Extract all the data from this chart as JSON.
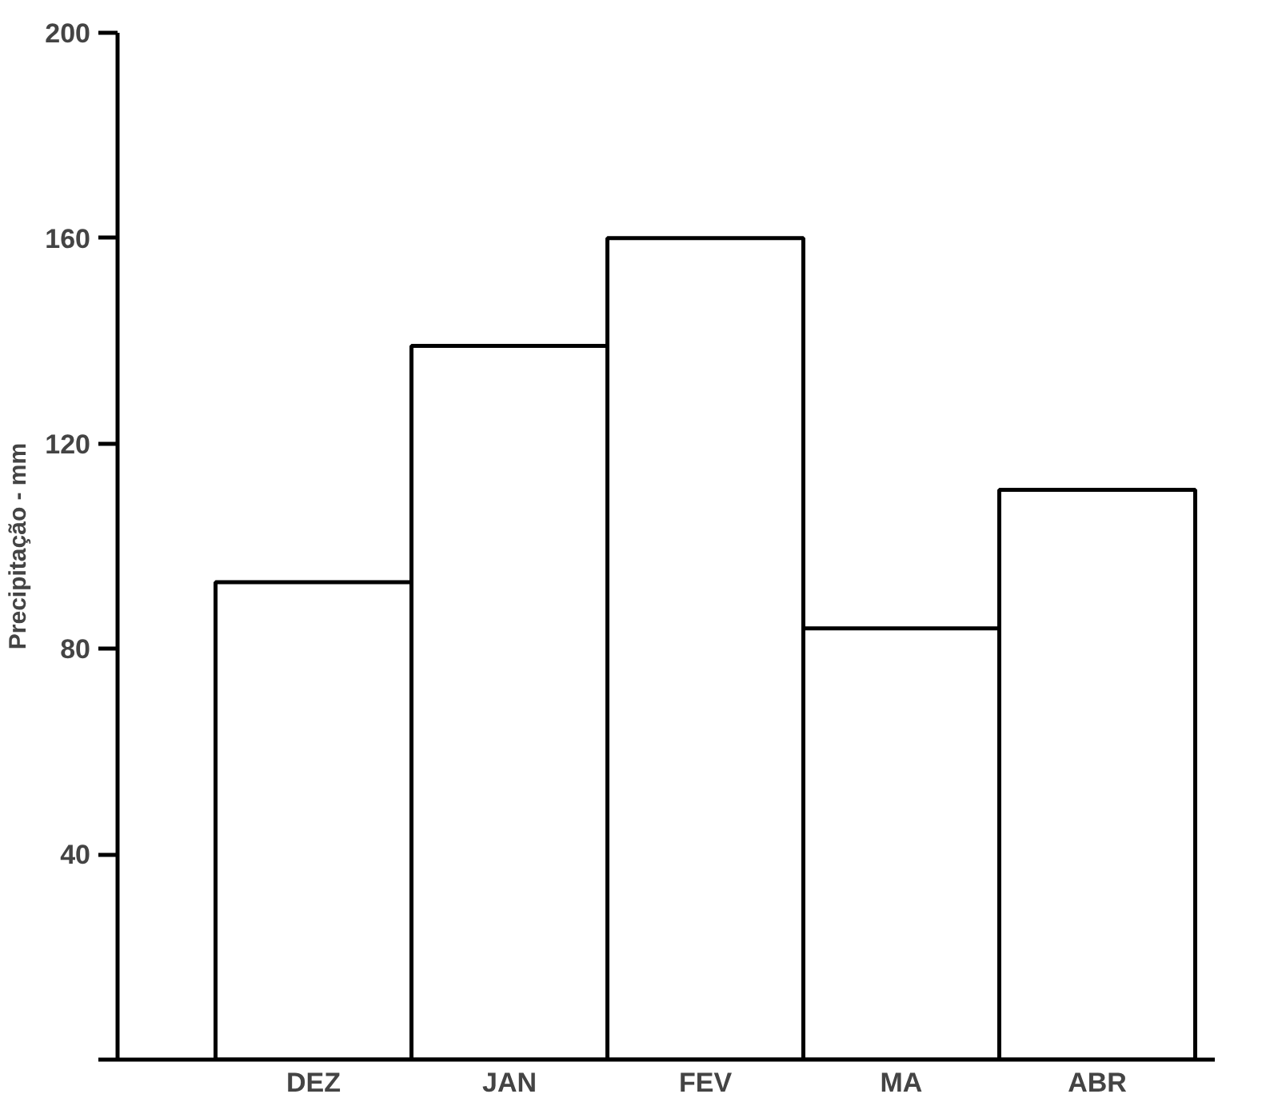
{
  "chart_data": {
    "type": "bar",
    "ylabel": "Precipitação - mm",
    "categories": [
      "DEZ",
      "JAN",
      "FEV",
      "MA",
      "ABR"
    ],
    "values": [
      93,
      139,
      160,
      84,
      111
    ],
    "color": "#ffffff",
    "ylim": [
      0,
      200
    ],
    "yticks": [
      {
        "value": 0,
        "label": null
      },
      40,
      80,
      120,
      160,
      200
    ],
    "grid": false
  }
}
